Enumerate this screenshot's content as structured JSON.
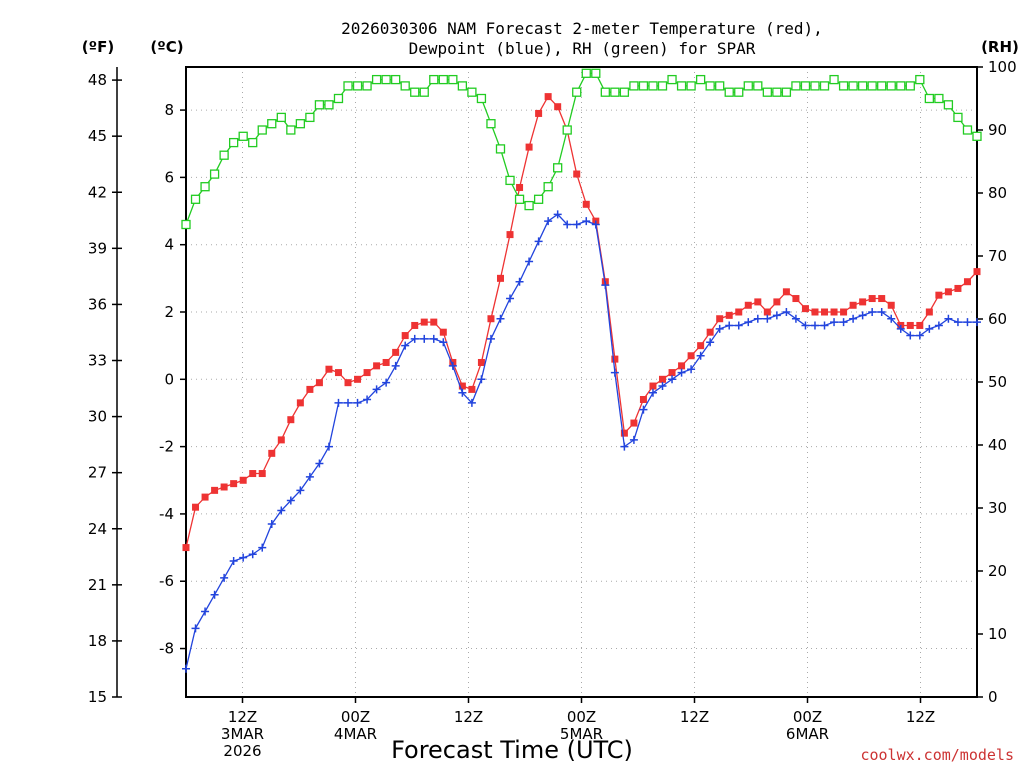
{
  "chart_data": {
    "type": "line",
    "title_line1": "2026030306 NAM Forecast 2-meter Temperature (red),",
    "title_line2": "Dewpoint (blue), RH (green) for SPAR",
    "xlabel": "Forecast Time (UTC)",
    "credit": "coolwx.com/models",
    "units": {
      "fahrenheit": "(ºF)",
      "celsius": "(ºC)",
      "rh": "(RH)"
    },
    "x_range_hours": [
      0,
      84
    ],
    "xticks": [
      {
        "hour": 6,
        "lines": [
          "12Z",
          "3MAR",
          "2026"
        ]
      },
      {
        "hour": 18,
        "lines": [
          "00Z",
          "4MAR"
        ]
      },
      {
        "hour": 30,
        "lines": [
          "12Z"
        ]
      },
      {
        "hour": 42,
        "lines": [
          "00Z",
          "5MAR"
        ]
      },
      {
        "hour": 54,
        "lines": [
          "12Z"
        ]
      },
      {
        "hour": 66,
        "lines": [
          "00Z",
          "6MAR"
        ]
      },
      {
        "hour": 78,
        "lines": [
          "12Z"
        ]
      }
    ],
    "y_left_f": {
      "ticks": [
        "15",
        "18",
        "21",
        "24",
        "27",
        "30",
        "33",
        "36",
        "39",
        "42",
        "45",
        "48"
      ],
      "range": [
        15,
        48.7
      ]
    },
    "y_left_c": {
      "ticks": [
        "-8",
        "-6",
        "-4",
        "-2",
        "0",
        "2",
        "4",
        "6",
        "8"
      ],
      "range": [
        -9.44,
        9.28
      ]
    },
    "y_right_rh": {
      "ticks": [
        "0",
        "10",
        "20",
        "30",
        "40",
        "50",
        "60",
        "70",
        "80",
        "90",
        "100"
      ],
      "range": [
        0,
        100
      ]
    },
    "grid": true,
    "colors": {
      "temperature": "#ee3333",
      "dewpoint": "#2244dd",
      "rh": "#22cc22"
    },
    "series": [
      {
        "name": "Temperature (red)",
        "unit": "C",
        "values": [
          -5.0,
          -3.8,
          -3.5,
          -3.3,
          -3.2,
          -3.1,
          -3.0,
          -2.8,
          -2.8,
          -2.2,
          -1.8,
          -1.2,
          -0.7,
          -0.3,
          -0.1,
          0.3,
          0.2,
          -0.1,
          0.0,
          0.2,
          0.4,
          0.5,
          0.8,
          1.3,
          1.6,
          1.7,
          1.7,
          1.4,
          0.5,
          -0.2,
          -0.3,
          0.5,
          1.8,
          3.0,
          4.3,
          5.7,
          6.9,
          7.9,
          8.4,
          8.1,
          7.4,
          6.1,
          5.2,
          4.7,
          2.9,
          0.6,
          -1.6,
          -1.3,
          -0.6,
          -0.2,
          0.0,
          0.2,
          0.4,
          0.7,
          1.0,
          1.4,
          1.8,
          1.9,
          2.0,
          2.2,
          2.3,
          2.0,
          2.3,
          2.6,
          2.4,
          2.1,
          2.0,
          2.0,
          2.0,
          2.0,
          2.2,
          2.3,
          2.4,
          2.4,
          2.2,
          1.6,
          1.6,
          1.6,
          2.0,
          2.5,
          2.6,
          2.7,
          2.9,
          3.2
        ]
      },
      {
        "name": "Dewpoint (blue)",
        "unit": "C",
        "values": [
          -8.6,
          -7.4,
          -6.9,
          -6.4,
          -5.9,
          -5.4,
          -5.3,
          -5.2,
          -5.0,
          -4.3,
          -3.9,
          -3.6,
          -3.3,
          -2.9,
          -2.5,
          -2.0,
          -0.7,
          -0.7,
          -0.7,
          -0.6,
          -0.3,
          -0.1,
          0.4,
          1.0,
          1.2,
          1.2,
          1.2,
          1.1,
          0.4,
          -0.4,
          -0.7,
          0.0,
          1.2,
          1.8,
          2.4,
          2.9,
          3.5,
          4.1,
          4.7,
          4.9,
          4.6,
          4.6,
          4.7,
          4.6,
          2.8,
          0.2,
          -2.0,
          -1.8,
          -0.9,
          -0.4,
          -0.2,
          0.0,
          0.2,
          0.3,
          0.7,
          1.1,
          1.5,
          1.6,
          1.6,
          1.7,
          1.8,
          1.8,
          1.9,
          2.0,
          1.8,
          1.6,
          1.6,
          1.6,
          1.7,
          1.7,
          1.8,
          1.9,
          2.0,
          2.0,
          1.8,
          1.5,
          1.3,
          1.3,
          1.5,
          1.6,
          1.8,
          1.7,
          1.7,
          1.7
        ]
      },
      {
        "name": "RH (green)",
        "unit": "%",
        "values": [
          75,
          79,
          81,
          83,
          86,
          88,
          89,
          88,
          90,
          91,
          92,
          90,
          91,
          92,
          94,
          94,
          95,
          97,
          97,
          97,
          98,
          98,
          98,
          97,
          96,
          96,
          98,
          98,
          98,
          97,
          96,
          95,
          91,
          87,
          82,
          79,
          78,
          79,
          81,
          84,
          90,
          96,
          99,
          99,
          96,
          96,
          96,
          97,
          97,
          97,
          97,
          98,
          97,
          97,
          98,
          97,
          97,
          96,
          96,
          97,
          97,
          96,
          96,
          96,
          97,
          97,
          97,
          97,
          98,
          97,
          97,
          97,
          97,
          97,
          97,
          97,
          97,
          98,
          95,
          95,
          94,
          92,
          90,
          89
        ]
      }
    ]
  }
}
